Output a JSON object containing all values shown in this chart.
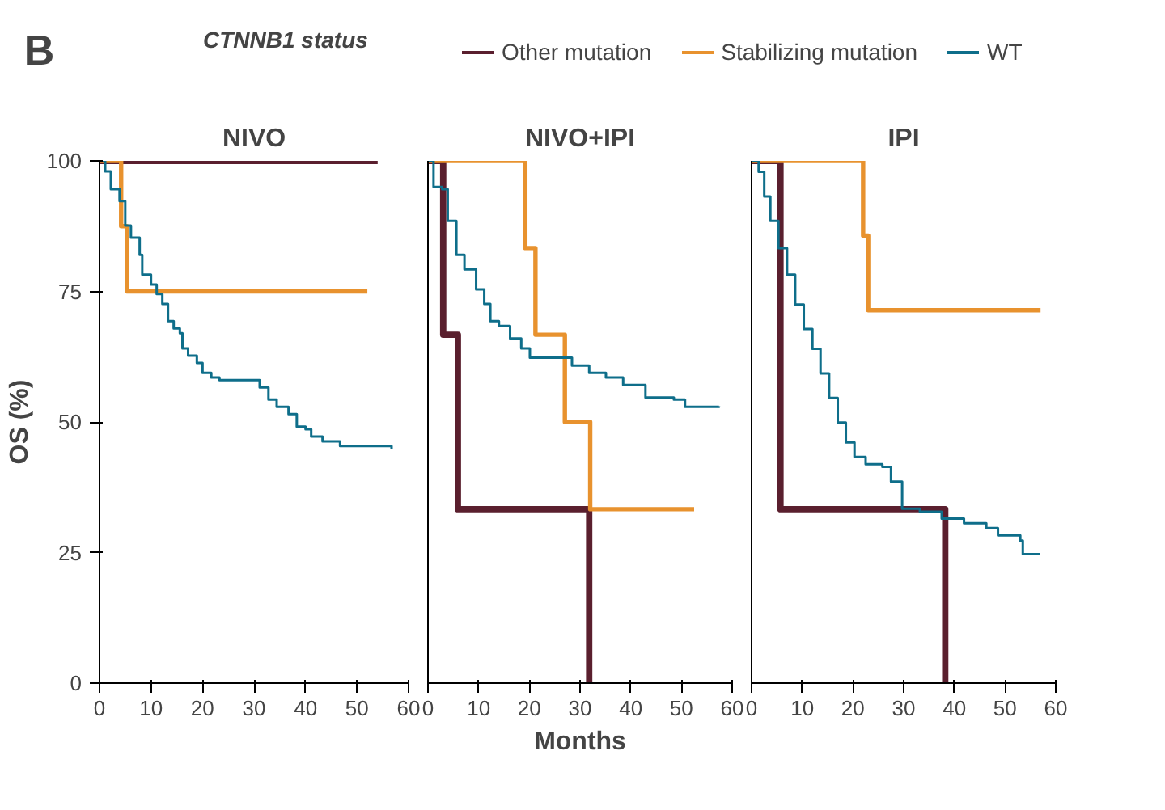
{
  "chart_data": [
    {
      "type": "step",
      "title": "NIVO",
      "ylabel": "OS (%)",
      "legend": "top",
      "legend_title": "CTNNB1 status",
      "annotations": [
        "B"
      ],
      "xlim": [
        0,
        60
      ],
      "xticks": [
        0,
        10,
        20,
        30,
        40,
        50,
        60
      ],
      "ylim": [
        0,
        100
      ],
      "yticks": [
        0,
        25,
        50,
        75,
        100
      ],
      "grid": false,
      "marker": "none",
      "series": [
        {
          "name": "Other mutation",
          "color": "#5a1f2e",
          "x": [
            0,
            54
          ],
          "values": [
            100,
            100
          ]
        },
        {
          "name": "Stabilizing mutation",
          "color": "#e8922e",
          "x": [
            0,
            4.2,
            5.3,
            52
          ],
          "values": [
            100,
            87.5,
            75,
            75
          ]
        },
        {
          "name": "WT",
          "color": "#0e6e8a",
          "x": [
            0,
            1.1,
            2.2,
            3.9,
            5,
            6.1,
            7.8,
            8.3,
            10,
            11.1,
            12.2,
            13.3,
            14.4,
            15.6,
            16.1,
            17.2,
            18.9,
            20,
            21.7,
            23.3,
            27.8,
            31.1,
            32.8,
            34.4,
            36.7,
            38.3,
            40,
            41.1,
            43.3,
            46.7,
            56.7
          ],
          "values": [
            100,
            98,
            94.6,
            92.3,
            87.6,
            85.3,
            82,
            78.2,
            76.3,
            74.5,
            72.6,
            69.3,
            67.9,
            67,
            64.1,
            62.7,
            61.3,
            59.4,
            58.5,
            58,
            58,
            56.6,
            54.3,
            52.9,
            51.5,
            49.1,
            48.6,
            47.2,
            46.3,
            45.4,
            44.9
          ]
        }
      ]
    },
    {
      "type": "step",
      "title": "NIVO+IPI",
      "xlabel": "Months",
      "tick_labels": "x",
      "xlim": [
        0,
        60
      ],
      "xticks": [
        0,
        10,
        20,
        30,
        40,
        50,
        60
      ],
      "ylim": [
        0,
        100
      ],
      "grid": false,
      "marker": "none",
      "series": [
        {
          "color": "#5a1f2e",
          "x": [
            0,
            3,
            5.9,
            31.8,
            31.8
          ],
          "values": [
            100,
            66.7,
            33.3,
            0,
            0
          ]
        },
        {
          "color": "#e8922e",
          "x": [
            0,
            19.2,
            21.2,
            27,
            32,
            52.5
          ],
          "values": [
            100,
            83.3,
            66.7,
            50,
            33.3,
            33.3
          ]
        },
        {
          "color": "#0e6e8a",
          "x": [
            0,
            1.1,
            2.8,
            3.9,
            5.6,
            7.2,
            9.5,
            11.1,
            12.3,
            14,
            16.2,
            18.4,
            20.1,
            26.2,
            28.4,
            31.8,
            35.1,
            38.5,
            42.9,
            48.5,
            50.7,
            57.4
          ],
          "values": [
            100,
            95,
            94.6,
            88.5,
            82,
            79.2,
            75.4,
            72.6,
            69.3,
            68.4,
            66,
            64.1,
            62.3,
            62.3,
            60.8,
            59.4,
            58.5,
            57.1,
            54.7,
            54.3,
            52.9,
            53
          ]
        }
      ]
    },
    {
      "type": "step",
      "title": "IPI",
      "tick_labels": "x",
      "xlim": [
        0,
        60
      ],
      "xticks": [
        0,
        10,
        20,
        30,
        40,
        50,
        60
      ],
      "ylim": [
        0,
        100
      ],
      "grid": false,
      "marker": "none",
      "series": [
        {
          "color": "#5a1f2e",
          "x": [
            0,
            5.7,
            38.2,
            38.2
          ],
          "values": [
            100,
            33.3,
            0,
            0
          ]
        },
        {
          "color": "#e8922e",
          "x": [
            0,
            22,
            23,
            57
          ],
          "values": [
            100,
            85.7,
            71.4,
            71.4
          ]
        },
        {
          "color": "#0e6e8a",
          "x": [
            0,
            1.4,
            2.5,
            3.7,
            5.3,
            7,
            8.6,
            10.3,
            12,
            13.6,
            15.3,
            17,
            18.6,
            20.3,
            22.5,
            25.8,
            27.5,
            29.7,
            33.2,
            37.5,
            41.9,
            46.3,
            48.6,
            53,
            53.5,
            56.9
          ],
          "values": [
            100,
            97.9,
            93.2,
            88.5,
            83.3,
            78.2,
            72.5,
            67.8,
            64,
            59.3,
            54.6,
            49.9,
            46.1,
            43.3,
            41.9,
            41.4,
            38.6,
            33.4,
            32.8,
            31.5,
            30.6,
            29.7,
            28.3,
            27.3,
            24.7,
            24.7
          ]
        }
      ]
    }
  ]
}
